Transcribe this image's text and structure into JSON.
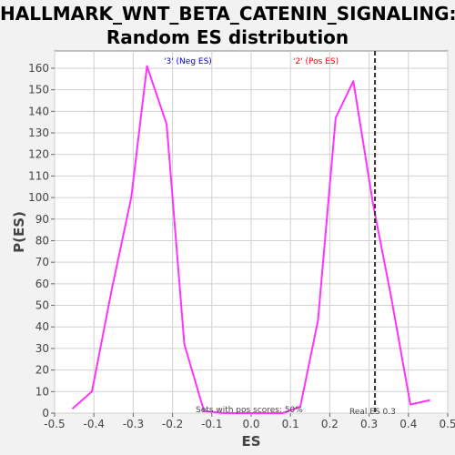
{
  "chart_data": {
    "type": "line",
    "title_line1": "HALLMARK_WNT_BETA_CATENIN_SIGNALING:",
    "title_line2": "Random ES distribution",
    "xlabel": "ES",
    "ylabel": "P(ES)",
    "xlim": [
      -0.5,
      0.5
    ],
    "ylim": [
      0,
      168
    ],
    "x_ticks": [
      -0.5,
      -0.4,
      -0.3,
      -0.2,
      -0.1,
      0.0,
      0.1,
      0.2,
      0.3,
      0.4,
      0.5
    ],
    "x_tick_labels": [
      "-0.5",
      "-0.4",
      "-0.3",
      "-0.2",
      "-0.1",
      "0.0",
      "0.1",
      "0.2",
      "0.3",
      "0.4",
      "0.5"
    ],
    "y_ticks": [
      0,
      10,
      20,
      30,
      40,
      50,
      60,
      70,
      80,
      90,
      100,
      110,
      120,
      130,
      140,
      150,
      160
    ],
    "y_tick_labels": [
      "0",
      "10",
      "20",
      "30",
      "40",
      "50",
      "60",
      "70",
      "80",
      "90",
      "100",
      "110",
      "120",
      "130",
      "140",
      "150",
      "160"
    ],
    "grid": true,
    "series": [
      {
        "color": "#ff33ff",
        "points": [
          [
            -0.455,
            2
          ],
          [
            -0.405,
            10
          ],
          [
            -0.355,
            57
          ],
          [
            -0.305,
            100
          ],
          [
            -0.265,
            161
          ],
          [
            -0.215,
            134
          ],
          [
            -0.17,
            32
          ],
          [
            -0.12,
            1
          ],
          [
            -0.07,
            0
          ],
          [
            -0.02,
            0
          ],
          [
            0.03,
            0
          ],
          [
            0.08,
            0
          ],
          [
            0.125,
            3
          ],
          [
            0.17,
            43
          ],
          [
            0.215,
            137
          ],
          [
            0.26,
            154
          ],
          [
            0.31,
            97
          ],
          [
            0.355,
            55
          ],
          [
            0.405,
            4
          ],
          [
            0.455,
            6
          ]
        ]
      }
    ],
    "real_es_x": 0.315,
    "annotations": {
      "neg_label": "'3' (Neg ES)",
      "pos_label": "'2' (Pos ES)",
      "sets_pos": "Sets with pos scores: 50%",
      "real_es": "Real ES 0.3"
    },
    "colors": {
      "line": "#ff33ff",
      "neg_label": "#0000cc",
      "pos_label": "#ff0000",
      "grid": "#d0d0d0",
      "real_es_line": "#333333"
    }
  }
}
